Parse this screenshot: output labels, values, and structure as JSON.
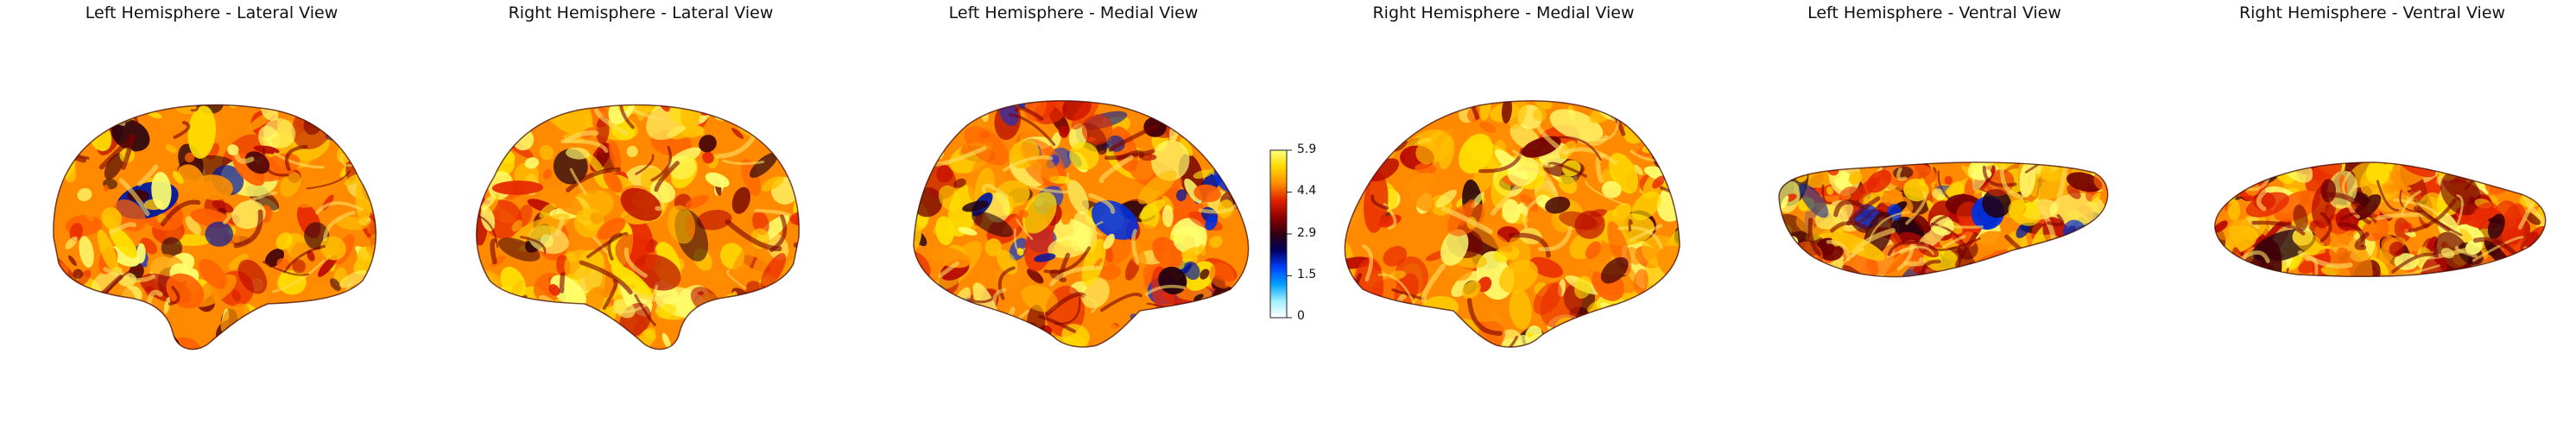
{
  "panels": [
    {
      "title": "Left Hemisphere - Lateral View",
      "hemisphere": "left",
      "view": "lateral"
    },
    {
      "title": "Right Hemisphere - Lateral View",
      "hemisphere": "right",
      "view": "lateral"
    },
    {
      "title": "Left Hemisphere - Medial View",
      "hemisphere": "left",
      "view": "medial"
    },
    {
      "title": "Right Hemisphere - Medial View",
      "hemisphere": "right",
      "view": "medial"
    },
    {
      "title": "Left Hemisphere - Ventral View",
      "hemisphere": "left",
      "view": "ventral"
    },
    {
      "title": "Right Hemisphere - Ventral View",
      "hemisphere": "right",
      "view": "ventral"
    }
  ],
  "colorbar": {
    "ticks": [
      "5.9",
      "4.4",
      "2.9",
      "1.5",
      "0"
    ],
    "colormap_stops": [
      "#ffff80",
      "#ffd700",
      "#ff8c00",
      "#e02000",
      "#900000",
      "#300010",
      "#000060",
      "#0040ff",
      "#00a0ff",
      "#a0f0ff",
      "#ffffff"
    ]
  },
  "colors": {
    "background": "#ffffff",
    "text": "#111111"
  }
}
